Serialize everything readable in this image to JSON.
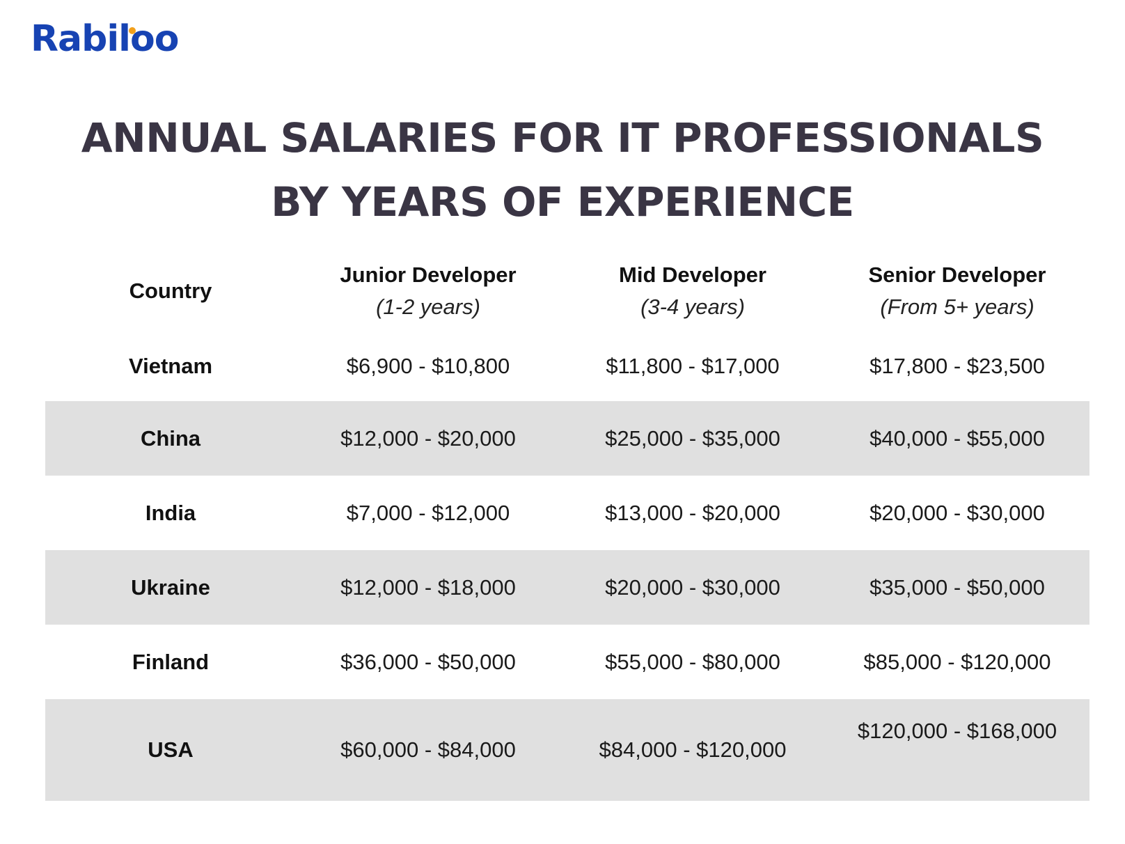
{
  "brand": {
    "logo_text": "Rabiloo",
    "dot_color": "#f2a01b",
    "logo_color": "#1743b3"
  },
  "title": {
    "line1": "ANNUAL SALARIES FOR IT PROFESSIONALS",
    "line2": "BY YEARS OF EXPERIENCE"
  },
  "table": {
    "headers": [
      {
        "label": "Country",
        "sub": ""
      },
      {
        "label": "Junior Developer",
        "sub": "(1-2 years)"
      },
      {
        "label": "Mid Developer",
        "sub": "(3-4 years)"
      },
      {
        "label": "Senior Developer",
        "sub": "(From 5+ years)"
      }
    ],
    "rows": [
      {
        "country": "Vietnam",
        "junior": "$6,900 - $10,800",
        "mid": "$11,800 - $17,000",
        "senior": "$17,800 - $23,500"
      },
      {
        "country": "China",
        "junior": "$12,000 - $20,000",
        "mid": "$25,000 - $35,000",
        "senior": "$40,000 - $55,000"
      },
      {
        "country": "India",
        "junior": "$7,000 - $12,000",
        "mid": "$13,000 - $20,000",
        "senior": "$20,000 - $30,000"
      },
      {
        "country": "Ukraine",
        "junior": "$12,000 - $18,000",
        "mid": "$20,000 - $30,000",
        "senior": "$35,000 - $50,000"
      },
      {
        "country": "Finland",
        "junior": "$36,000 - $50,000",
        "mid": "$55,000 - $80,000",
        "senior": "$85,000 - $120,000"
      },
      {
        "country": "USA",
        "junior": "$60,000 - $84,000",
        "mid": "$84,000 - $120,000",
        "senior": "$120,000 - $168,000"
      }
    ],
    "shaded_row_color": "#e0e0e0"
  }
}
